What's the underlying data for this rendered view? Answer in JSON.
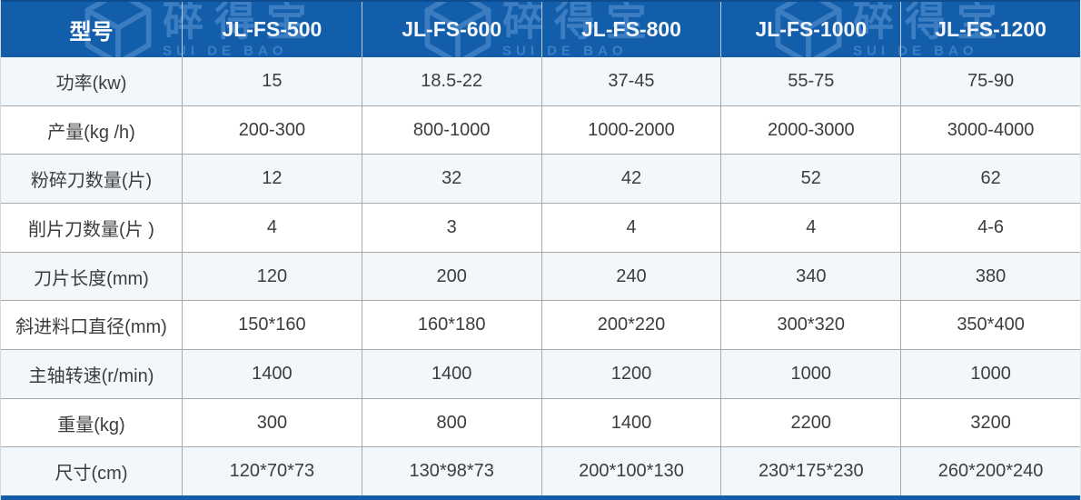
{
  "brand_watermark": {
    "cn": "碎得宝",
    "en": "SUI DE BAO",
    "color": "#4282c6"
  },
  "colors": {
    "header_bg": "#125eaa",
    "header_top_edge": "#0d4c8e",
    "header_text": "#ffffff",
    "watermark_blue": "#4282c6",
    "row_alt_bg": "#f2f7fc",
    "row_bg": "#ffffff",
    "grid_line": "#a9a9a9",
    "cell_text": "#3d3d3d",
    "bottom_bar": "#125eaa"
  },
  "table": {
    "header": {
      "model_label": "型号",
      "models": [
        "JL-FS-500",
        "JL-FS-600",
        "JL-FS-800",
        "JL-FS-1000",
        "JL-FS-1200"
      ]
    },
    "rows": [
      {
        "label": "功率(kw)",
        "values": [
          "15",
          "18.5-22",
          "37-45",
          "55-75",
          "75-90"
        ]
      },
      {
        "label": "产量(kg /h)",
        "values": [
          "200-300",
          "800-1000",
          "1000-2000",
          "2000-3000",
          "3000-4000"
        ]
      },
      {
        "label": "粉碎刀数量(片)",
        "values": [
          "12",
          "32",
          "42",
          "52",
          "62"
        ]
      },
      {
        "label": "削片刀数量(片 )",
        "values": [
          "4",
          "3",
          "4",
          "4",
          "4-6"
        ]
      },
      {
        "label": "刀片长度(mm)",
        "values": [
          "120",
          "200",
          "240",
          "340",
          "380"
        ]
      },
      {
        "label": "斜进料口直径(mm)",
        "values": [
          "150*160",
          "160*180",
          "200*220",
          "300*320",
          "350*400"
        ]
      },
      {
        "label": "主轴转速(r/min)",
        "values": [
          "1400",
          "1400",
          "1200",
          "1000",
          "1000"
        ]
      },
      {
        "label": "重量(kg)",
        "values": [
          "300",
          "800",
          "1400",
          "2200",
          "3200"
        ]
      },
      {
        "label": "尺寸(cm)",
        "values": [
          "120*70*73",
          "130*98*73",
          "200*100*130",
          "230*175*230",
          "260*200*240"
        ]
      }
    ]
  },
  "chart_data": {
    "type": "table",
    "columns": [
      "型号",
      "JL-FS-500",
      "JL-FS-600",
      "JL-FS-800",
      "JL-FS-1000",
      "JL-FS-1200"
    ],
    "rows": [
      [
        "功率(kw)",
        "15",
        "18.5-22",
        "37-45",
        "55-75",
        "75-90"
      ],
      [
        "产量(kg /h)",
        "200-300",
        "800-1000",
        "1000-2000",
        "2000-3000",
        "3000-4000"
      ],
      [
        "粉碎刀数量(片)",
        "12",
        "32",
        "42",
        "52",
        "62"
      ],
      [
        "削片刀数量(片 )",
        "4",
        "3",
        "4",
        "4",
        "4-6"
      ],
      [
        "刀片长度(mm)",
        "120",
        "200",
        "240",
        "340",
        "380"
      ],
      [
        "斜进料口直径(mm)",
        "150*160",
        "160*180",
        "200*220",
        "300*320",
        "350*400"
      ],
      [
        "主轴转速(r/min)",
        "1400",
        "1400",
        "1200",
        "1000",
        "1000"
      ],
      [
        "重量(kg)",
        "300",
        "800",
        "1400",
        "2200",
        "3200"
      ],
      [
        "尺寸(cm)",
        "120*70*73",
        "130*98*73",
        "200*100*130",
        "230*175*230",
        "260*200*240"
      ]
    ]
  }
}
